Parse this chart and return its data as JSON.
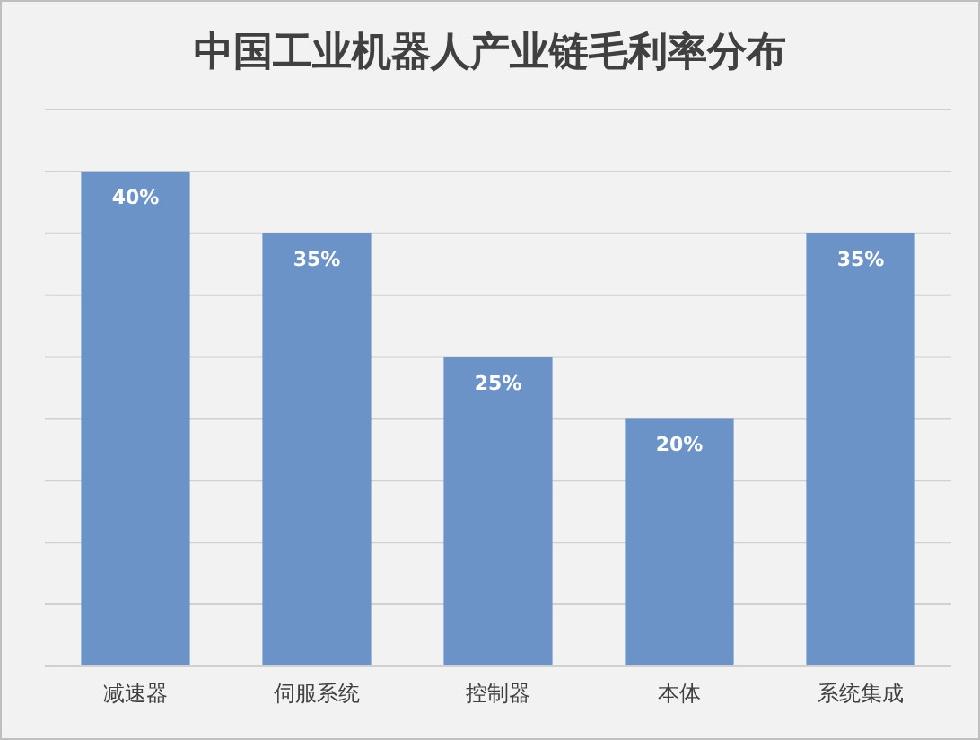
{
  "chart_data": {
    "type": "bar",
    "title": "中国工业机器人产业链毛利率分布",
    "categories": [
      "减速器",
      "伺服系统",
      "控制器",
      "本体",
      "系统集成"
    ],
    "values": [
      40,
      35,
      25,
      20,
      35
    ],
    "value_labels": [
      "40%",
      "35%",
      "25%",
      "20%",
      "35%"
    ],
    "color": "#6b93c8",
    "ylim": [
      0,
      45
    ],
    "yticks": [
      {
        "value": 0,
        "label": null
      },
      {
        "value": 5,
        "label": null
      },
      {
        "value": 10,
        "label": null
      },
      {
        "value": 15,
        "label": null
      },
      {
        "value": 20,
        "label": null
      },
      {
        "value": 25,
        "label": null
      },
      {
        "value": 30,
        "label": null
      },
      {
        "value": 35,
        "label": null
      },
      {
        "value": 40,
        "label": null
      },
      {
        "value": 45,
        "label": null
      }
    ],
    "grid": "y",
    "tick_labels": "x"
  }
}
